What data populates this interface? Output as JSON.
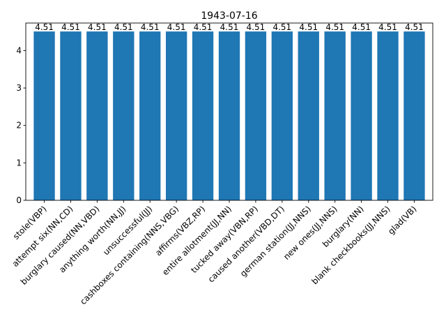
{
  "chart_data": {
    "type": "bar",
    "title": "1943-07-16",
    "xlabel": "",
    "ylabel": "",
    "categories": [
      "stole(VBP)",
      "attempt six(NN,CD)",
      "burglary caused(NN,VBD)",
      "anything worth(NN,JJ)",
      "unsuccessful(JJ)",
      "cashboxes containing(NNS,VBG)",
      "affirms(VBZ,RP)",
      "entire allotment(JJ,NN)",
      "tucked away(VBN,RP)",
      "caused another(VBD,DT)",
      "german station(JJ,NNS)",
      "new ones(JJ,NNS)",
      "burglary(NN)",
      "blank checkbooks(JJ,NNS)",
      "glad(VB)"
    ],
    "values": [
      4.51,
      4.51,
      4.51,
      4.51,
      4.51,
      4.51,
      4.51,
      4.51,
      4.51,
      4.51,
      4.51,
      4.51,
      4.51,
      4.51,
      4.51
    ],
    "data_labels": [
      "4.51",
      "4.51",
      "4.51",
      "4.51",
      "4.51",
      "4.51",
      "4.51",
      "4.51",
      "4.51",
      "4.51",
      "4.51",
      "4.51",
      "4.51",
      "4.51",
      "4.51"
    ],
    "ylim": [
      0,
      4.7355
    ],
    "yticks": [
      0,
      1,
      2,
      3,
      4
    ],
    "ytick_labels": [
      "0",
      "1",
      "2",
      "3",
      "4"
    ],
    "bar_color": "#1f77b4",
    "grid": false,
    "legend": "none",
    "xtick_rotation": 45
  }
}
